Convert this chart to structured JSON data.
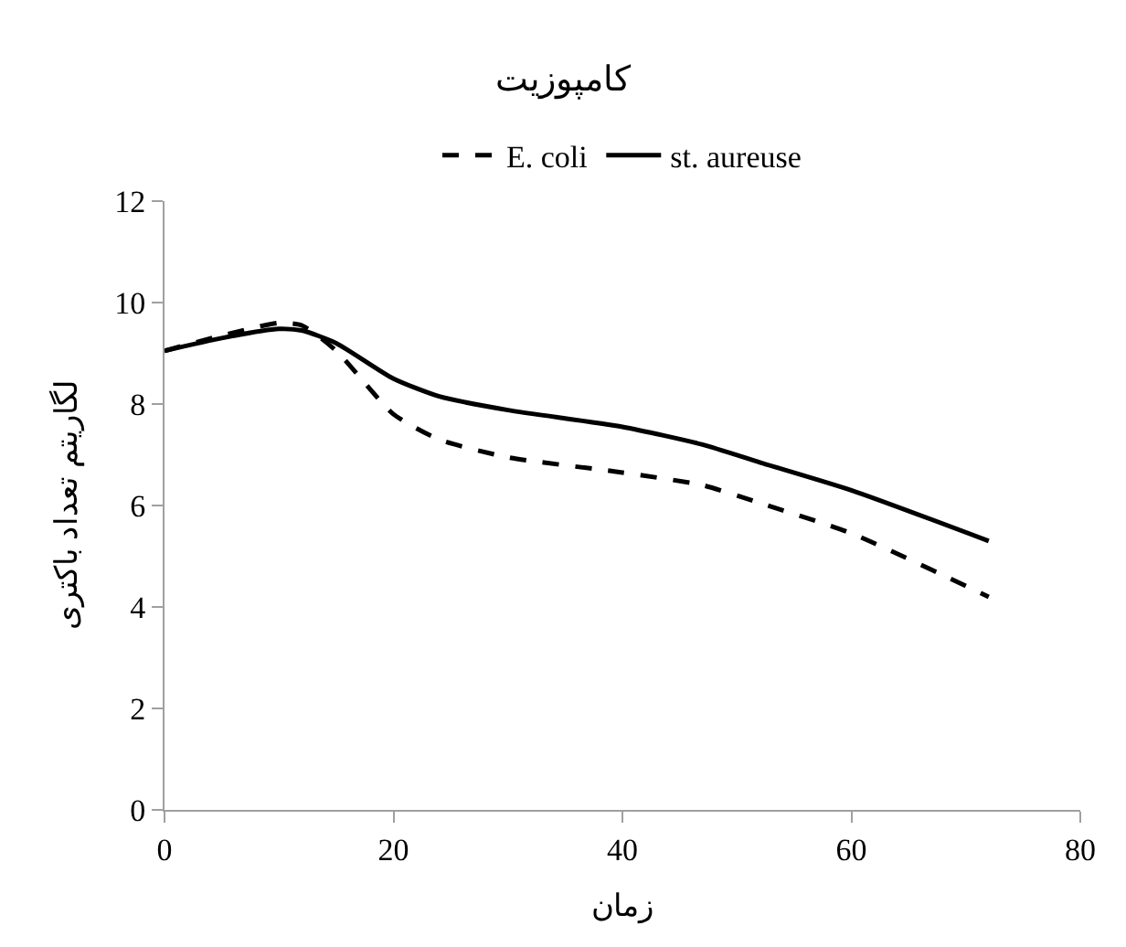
{
  "chart_data": {
    "type": "line",
    "title": "کامپوزیت",
    "xlabel": "زمان",
    "ylabel": "لگاریتم تعداد باکتری",
    "x": [
      0,
      5,
      10,
      12,
      15,
      20,
      24,
      30,
      40,
      47,
      52,
      60,
      72
    ],
    "series": [
      {
        "name": "E. coli",
        "color": "#000000",
        "line_style": "dashed",
        "values": [
          9.05,
          9.35,
          9.6,
          9.55,
          9.05,
          7.8,
          7.3,
          6.95,
          6.65,
          6.4,
          6.05,
          5.45,
          4.2
        ]
      },
      {
        "name": "st. aureuse",
        "color": "#000000",
        "line_style": "solid",
        "values": [
          9.05,
          9.3,
          9.48,
          9.45,
          9.2,
          8.5,
          8.15,
          7.88,
          7.55,
          7.2,
          6.85,
          6.3,
          5.3
        ]
      }
    ],
    "xlim": [
      0,
      80
    ],
    "xticks": [
      0,
      20,
      40,
      60,
      80
    ],
    "ylim": [
      0,
      12
    ],
    "yticks": [
      0,
      2,
      4,
      6,
      8,
      10,
      12
    ],
    "legend": "top",
    "marker": "none"
  }
}
